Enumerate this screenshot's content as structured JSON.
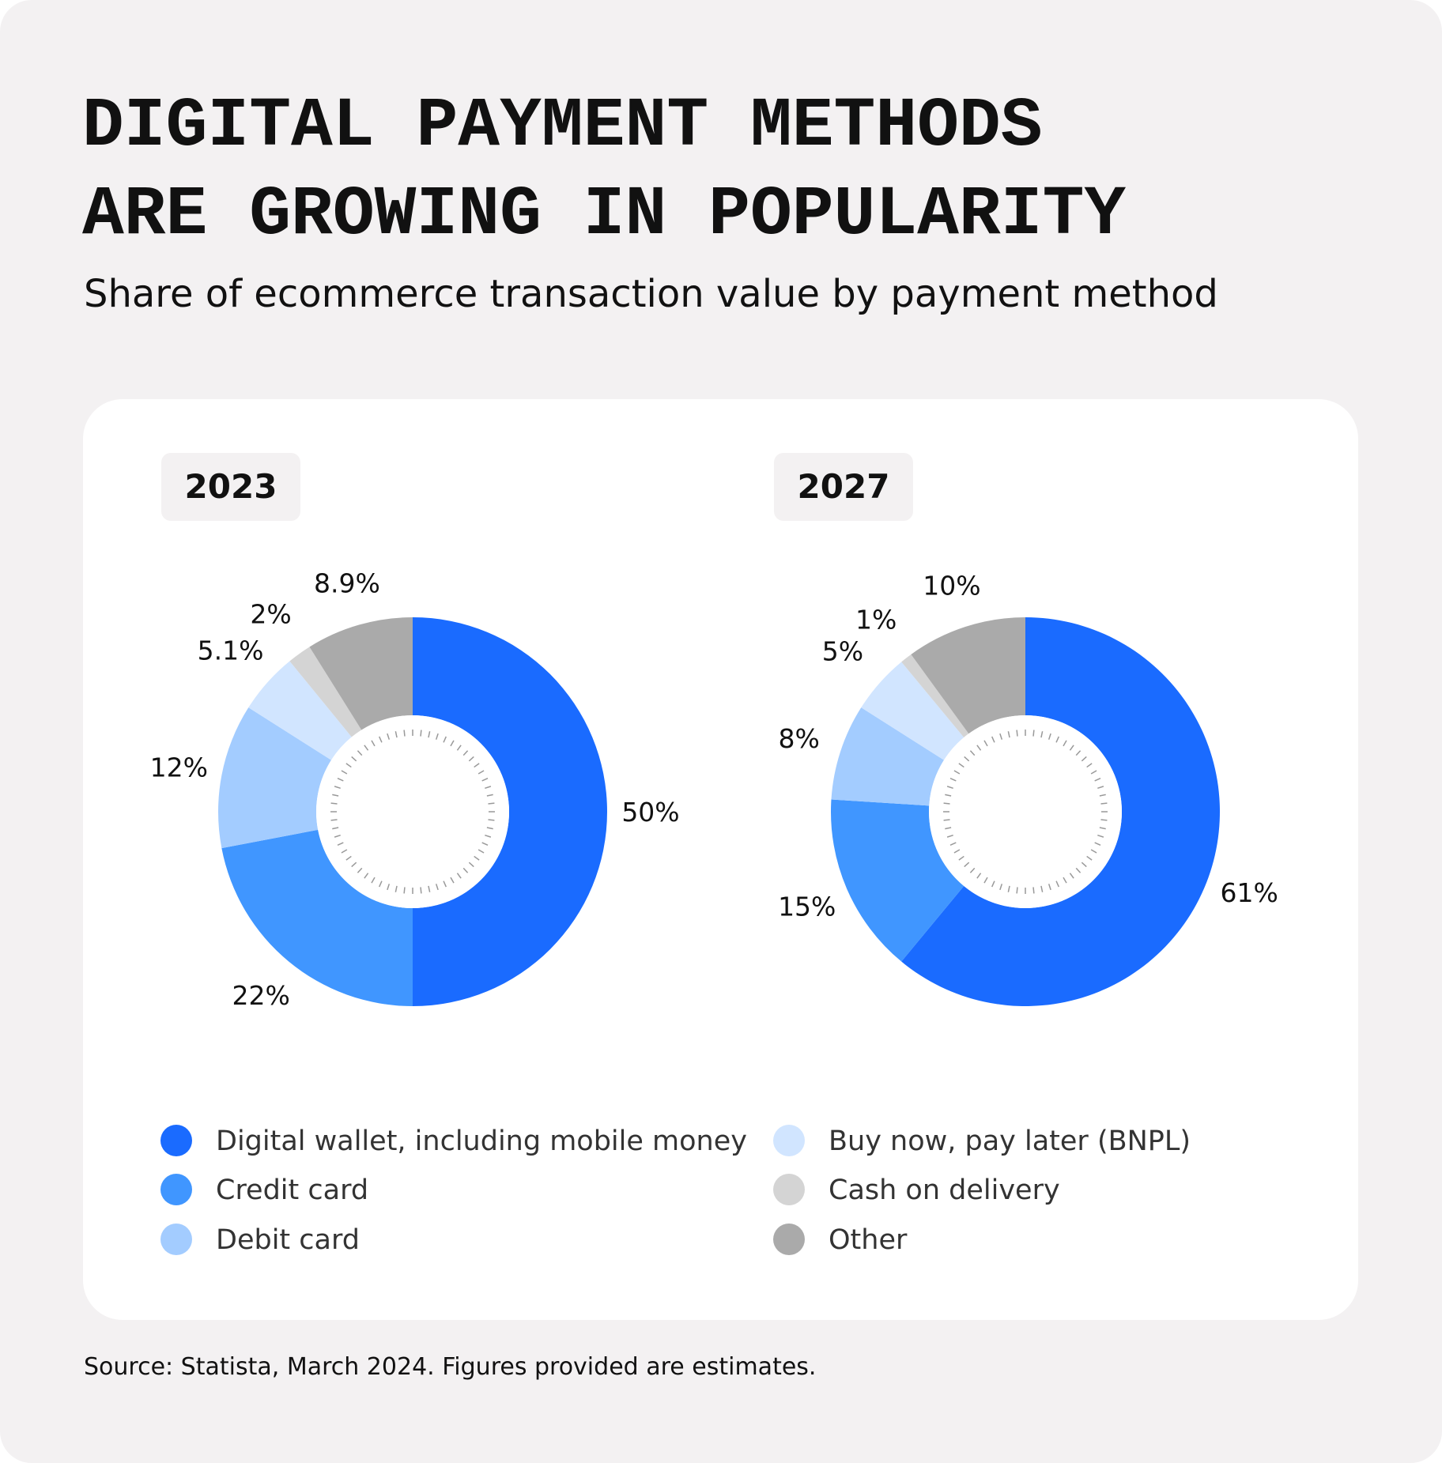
{
  "header": {
    "title": "DIGITAL PAYMENT METHODS ARE GROWING IN POPULARITY",
    "subtitle": "Share of ecommerce transaction value by payment method"
  },
  "chart_data": {
    "type": "donut",
    "categories": [
      "Digital wallet, including mobile money",
      "Credit card",
      "Debit card",
      "Buy now, pay later (BNPL)",
      "Cash on delivery",
      "Other"
    ],
    "colors": [
      "#1a6bff",
      "#4096ff",
      "#a3ccff",
      "#d1e5ff",
      "#d4d4d4",
      "#aaaaaa"
    ],
    "series": [
      {
        "name": "2023",
        "values": [
          50,
          22,
          12,
          5.1,
          2,
          8.9
        ],
        "value_labels": [
          "50%",
          "22%",
          "12%",
          "5.1%",
          "2%",
          "8.9%"
        ]
      },
      {
        "name": "2027",
        "values": [
          61,
          15,
          8,
          5,
          1,
          10
        ],
        "value_labels": [
          "61%",
          "15%",
          "8%",
          "5%",
          "1%",
          "10%"
        ]
      }
    ]
  },
  "footer": {
    "source": "Source: Statista, March 2024. Figures provided are estimates."
  }
}
